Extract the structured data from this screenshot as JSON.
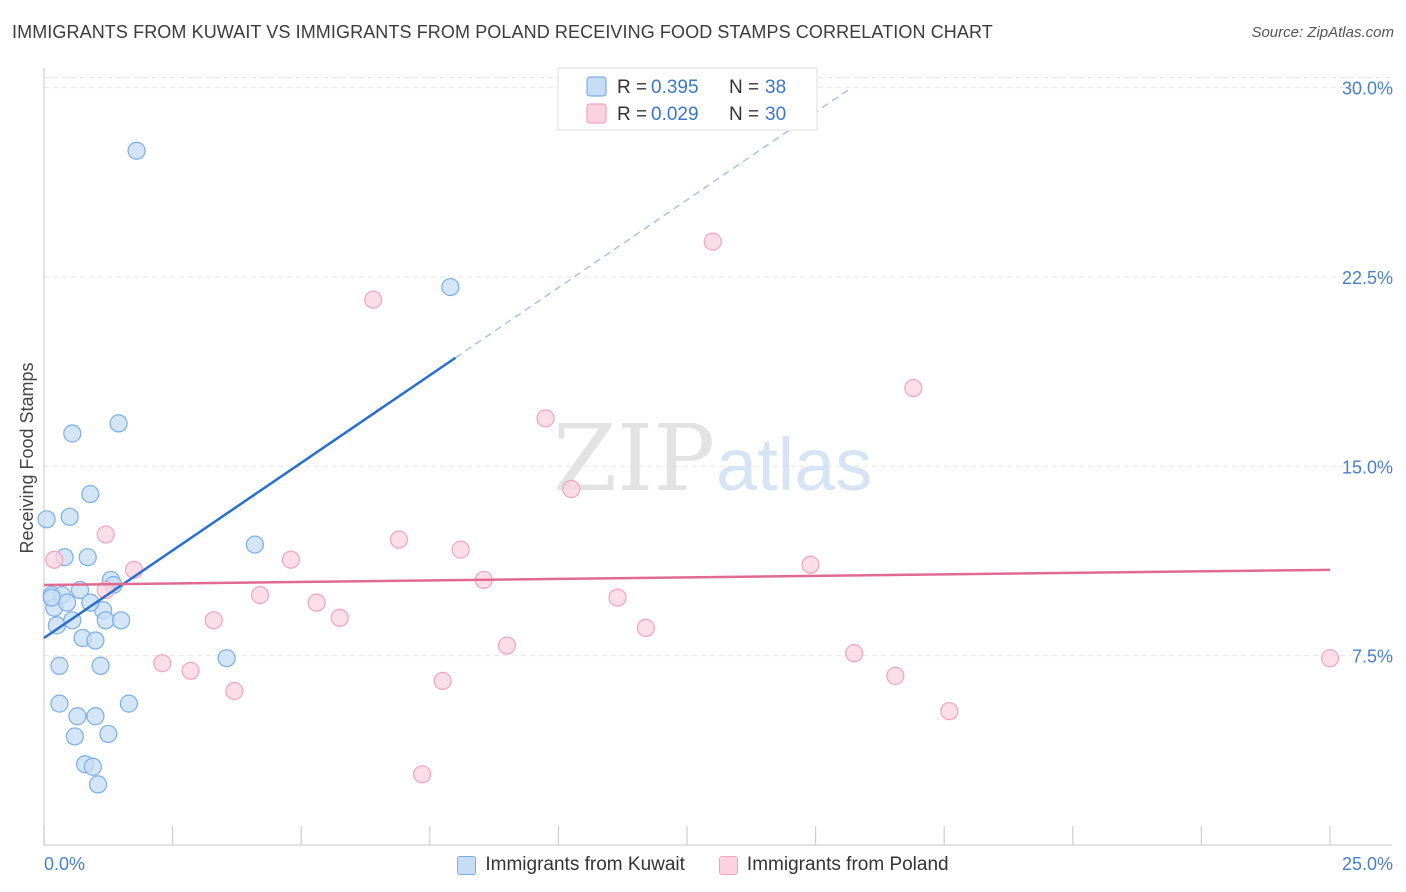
{
  "header": {
    "title": "IMMIGRANTS FROM KUWAIT VS IMMIGRANTS FROM POLAND RECEIVING FOOD STAMPS CORRELATION CHART",
    "source": "Source: ZipAtlas.com"
  },
  "watermark": {
    "zip": "ZIP",
    "atlas": "atlas"
  },
  "chart_data": {
    "type": "scatter",
    "title": "IMMIGRANTS FROM KUWAIT VS IMMIGRANTS FROM POLAND RECEIVING FOOD STAMPS CORRELATION CHART",
    "xlabel": "",
    "ylabel": "Receiving Food Stamps",
    "xlim": [
      0,
      25
    ],
    "ylim": [
      0,
      30.5
    ],
    "x_tick_labels": {
      "min": "0.0%",
      "max": "25.0%"
    },
    "y_ticks": [
      7.5,
      15.0,
      22.5,
      30.0
    ],
    "y_tick_labels": [
      "7.5%",
      "15.0%",
      "22.5%",
      "30.0%"
    ],
    "grid": true,
    "legend_position": "top-center",
    "series": [
      {
        "name": "Immigrants from Kuwait",
        "color": "#7aaee8",
        "fill": "#c7dcf5",
        "stroke": "#7aaee8",
        "line_color": "#2a6fcc",
        "R": "0.395",
        "N": "38",
        "trend": {
          "x0": 0.0,
          "y0": 8.2,
          "x1": 8.0,
          "y1": 19.3,
          "dash_to_x": 15.7,
          "dash_to_y": 30.0
        },
        "points": [
          [
            0.05,
            12.9
          ],
          [
            0.15,
            9.9
          ],
          [
            0.2,
            9.4
          ],
          [
            0.25,
            8.7
          ],
          [
            0.3,
            5.6
          ],
          [
            0.3,
            7.1
          ],
          [
            0.35,
            9.9
          ],
          [
            0.4,
            11.4
          ],
          [
            0.45,
            9.6
          ],
          [
            0.5,
            13.0
          ],
          [
            0.55,
            8.9
          ],
          [
            0.55,
            16.3
          ],
          [
            0.6,
            4.3
          ],
          [
            0.65,
            5.1
          ],
          [
            0.7,
            10.1
          ],
          [
            0.75,
            8.2
          ],
          [
            0.8,
            3.2
          ],
          [
            0.85,
            11.4
          ],
          [
            0.9,
            13.9
          ],
          [
            0.95,
            3.1
          ],
          [
            1.0,
            5.1
          ],
          [
            1.0,
            8.1
          ],
          [
            1.05,
            2.4
          ],
          [
            1.1,
            7.1
          ],
          [
            1.15,
            9.3
          ],
          [
            1.2,
            8.9
          ],
          [
            1.25,
            4.4
          ],
          [
            1.3,
            10.5
          ],
          [
            1.35,
            10.3
          ],
          [
            1.45,
            16.7
          ],
          [
            1.5,
            8.9
          ],
          [
            1.65,
            5.6
          ],
          [
            1.8,
            27.5
          ],
          [
            3.55,
            7.4
          ],
          [
            4.1,
            11.9
          ],
          [
            7.9,
            22.1
          ],
          [
            0.15,
            9.8
          ],
          [
            0.9,
            9.6
          ]
        ]
      },
      {
        "name": "Immigrants from Poland",
        "color": "#f2a3bd",
        "fill": "#fbd3e0",
        "stroke": "#f2a3bd",
        "line_color": "#e06a92",
        "R": "0.029",
        "N": "30",
        "trend": {
          "x0": 0.0,
          "y0": 10.3,
          "x1": 25.0,
          "y1": 10.9
        },
        "points": [
          [
            0.2,
            11.3
          ],
          [
            1.2,
            10.1
          ],
          [
            1.2,
            12.3
          ],
          [
            1.75,
            10.9
          ],
          [
            2.3,
            7.2
          ],
          [
            2.85,
            6.9
          ],
          [
            3.3,
            8.9
          ],
          [
            3.7,
            6.1
          ],
          [
            4.2,
            9.9
          ],
          [
            4.8,
            11.3
          ],
          [
            5.3,
            9.6
          ],
          [
            5.75,
            9.0
          ],
          [
            6.4,
            21.6
          ],
          [
            6.9,
            12.1
          ],
          [
            7.35,
            2.8
          ],
          [
            7.75,
            6.5
          ],
          [
            8.1,
            11.7
          ],
          [
            8.55,
            10.5
          ],
          [
            9.0,
            7.9
          ],
          [
            9.75,
            16.9
          ],
          [
            10.25,
            14.1
          ],
          [
            11.15,
            9.8
          ],
          [
            11.7,
            8.6
          ],
          [
            13.0,
            23.9
          ],
          [
            14.9,
            11.1
          ],
          [
            15.75,
            7.6
          ],
          [
            16.55,
            6.7
          ],
          [
            16.9,
            18.1
          ],
          [
            17.6,
            5.3
          ],
          [
            25.0,
            7.4
          ]
        ]
      }
    ]
  }
}
